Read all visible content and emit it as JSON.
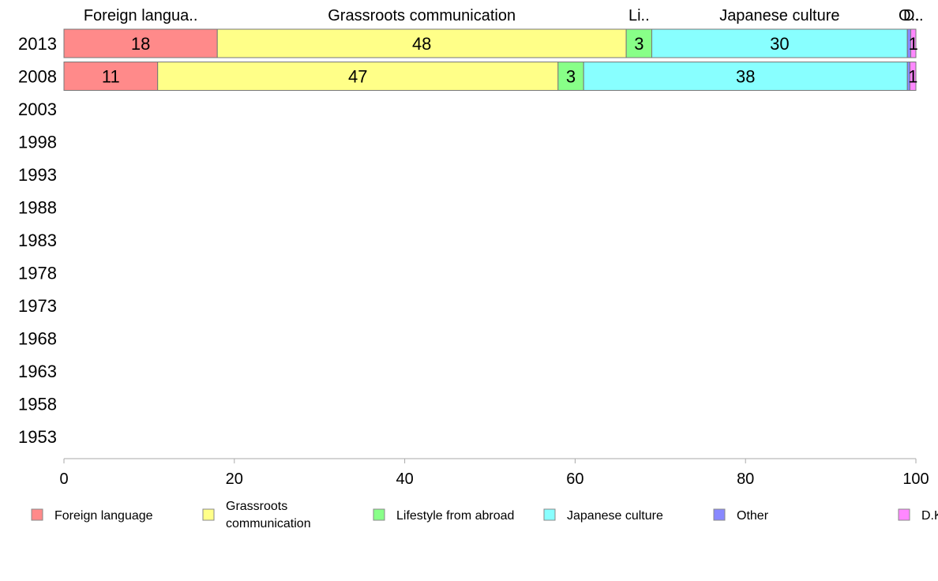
{
  "chart_data": {
    "type": "bar",
    "orientation": "horizontal",
    "stacked": true,
    "categories": [
      "2013",
      "2008",
      "2003",
      "1998",
      "1993",
      "1988",
      "1983",
      "1978",
      "1973",
      "1968",
      "1963",
      "1958",
      "1953"
    ],
    "series": [
      {
        "name": "Foreign language",
        "short": "Foreign langua..",
        "color": "#ff8a8a",
        "values": [
          18,
          11,
          null,
          null,
          null,
          null,
          null,
          null,
          null,
          null,
          null,
          null,
          null
        ],
        "labels": [
          "18",
          "11",
          "",
          "",
          "",
          "",
          "",
          "",
          "",
          "",
          "",
          "",
          ""
        ]
      },
      {
        "name": "Grassroots communication",
        "short": "Grassroots communication",
        "legend_lines": [
          "Grassroots",
          "communication"
        ],
        "color": "#ffff88",
        "values": [
          48,
          47,
          null,
          null,
          null,
          null,
          null,
          null,
          null,
          null,
          null,
          null,
          null
        ],
        "labels": [
          "48",
          "47",
          "",
          "",
          "",
          "",
          "",
          "",
          "",
          "",
          "",
          "",
          ""
        ]
      },
      {
        "name": "Lifestyle from abroad",
        "short": "Li..",
        "color": "#88ff88",
        "values": [
          3,
          3,
          null,
          null,
          null,
          null,
          null,
          null,
          null,
          null,
          null,
          null,
          null
        ],
        "labels": [
          "3",
          "3",
          "",
          "",
          "",
          "",
          "",
          "",
          "",
          "",
          "",
          "",
          ""
        ]
      },
      {
        "name": "Japanese culture",
        "short": "Japanese culture",
        "color": "#88ffff",
        "values": [
          30,
          38,
          null,
          null,
          null,
          null,
          null,
          null,
          null,
          null,
          null,
          null,
          null
        ],
        "labels": [
          "30",
          "38",
          "",
          "",
          "",
          "",
          "",
          "",
          "",
          "",
          "",
          "",
          ""
        ]
      },
      {
        "name": "Other",
        "short": "O..",
        "color": "#8888ff",
        "values": [
          0.4,
          0.3,
          null,
          null,
          null,
          null,
          null,
          null,
          null,
          null,
          null,
          null,
          null
        ],
        "labels": [
          "",
          "",
          "",
          "",
          "",
          "",
          "",
          "",
          "",
          "",
          "",
          "",
          ""
        ]
      },
      {
        "name": "D.K.",
        "short": "D..",
        "color": "#ff88ff",
        "values": [
          0.6,
          0.7,
          null,
          null,
          null,
          null,
          null,
          null,
          null,
          null,
          null,
          null,
          null
        ],
        "labels": [
          "1",
          "1",
          "",
          "",
          "",
          "",
          "",
          "",
          "",
          "",
          "",
          "",
          ""
        ]
      }
    ],
    "xlim": [
      0,
      100
    ],
    "xticks": [
      0,
      20,
      40,
      60,
      80,
      100
    ],
    "grid": false,
    "legend_position": "bottom"
  }
}
